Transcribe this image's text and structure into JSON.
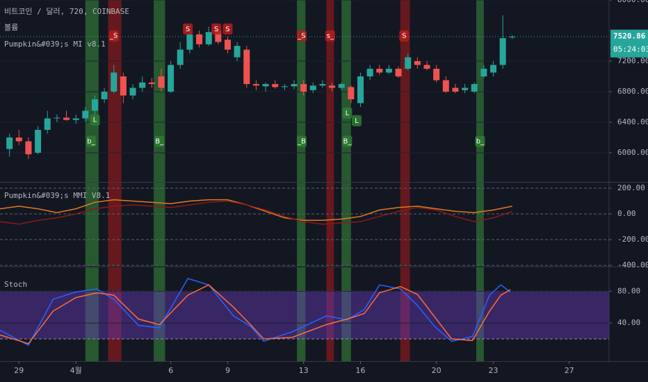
{
  "chart_data": [
    {
      "type": "candlestick",
      "title": "비트코인 / 달러, 720, COINBASE",
      "subtitle": "볼륨",
      "indicator": "Pumpkin&#039;s MI v8.1",
      "xlim": [
        -1,
        31.1
      ],
      "ylim": [
        5618,
        8000
      ],
      "yticks": [
        {
          "value": 6000,
          "label": "6000.00"
        },
        {
          "value": 6400,
          "label": "6400.00"
        },
        {
          "value": 6800,
          "label": "6800.00"
        },
        {
          "value": 7200,
          "label": "7200.00"
        },
        {
          "value": 8000,
          "label": "8000.00"
        }
      ],
      "up_color": "#26a69a",
      "down_color": "#ef5350",
      "x": [
        -0.5,
        0,
        0.5,
        1,
        1.5,
        2,
        2.5,
        3,
        3.5,
        4,
        4.5,
        5,
        5.5,
        6,
        6.5,
        7,
        7.5,
        8,
        8.5,
        9,
        9.5,
        10,
        10.5,
        11,
        11.5,
        12,
        12.5,
        13,
        13.5,
        14,
        14.5,
        15,
        15.5,
        16,
        16.5,
        17,
        17.5,
        18,
        18.5,
        19,
        19.5,
        20,
        20.5,
        21,
        21.5,
        22,
        22.5,
        23,
        23.5,
        24,
        24.5,
        25,
        25.5,
        26
      ],
      "open": [
        6050,
        6200,
        6150,
        6000,
        6300,
        6450,
        6460,
        6430,
        6450,
        6550,
        6700,
        6800,
        7000,
        6750,
        6850,
        6920,
        7000,
        6800,
        7150,
        7350,
        7550,
        7420,
        7600,
        7480,
        7250,
        7350,
        6900,
        6870,
        6900,
        6860,
        6870,
        6900,
        6820,
        6880,
        6880,
        6850,
        6860,
        6650,
        7000,
        7100,
        7050,
        7100,
        7100,
        7200,
        7150,
        7100,
        6950,
        6850,
        6820,
        6800,
        7000,
        7050,
        7150,
        7510
      ],
      "high": [
        6250,
        6300,
        6200,
        6350,
        6550,
        6500,
        6550,
        6500,
        6600,
        6750,
        6850,
        7150,
        7050,
        6900,
        7000,
        6980,
        7100,
        7200,
        7450,
        7600,
        7600,
        7650,
        7650,
        7520,
        7450,
        7400,
        6950,
        6920,
        6950,
        6900,
        6950,
        6950,
        6920,
        6950,
        6920,
        6920,
        6880,
        7050,
        7150,
        7150,
        7150,
        7130,
        7300,
        7250,
        7200,
        7150,
        7000,
        6900,
        6900,
        6920,
        7150,
        7200,
        7800,
        7540
      ],
      "low": [
        5950,
        6100,
        5920,
        5980,
        6250,
        6400,
        6420,
        6380,
        6400,
        6500,
        6650,
        6780,
        6650,
        6700,
        6800,
        6850,
        6800,
        6780,
        7100,
        7300,
        7380,
        7400,
        7420,
        7300,
        7200,
        6850,
        6820,
        6800,
        6840,
        6820,
        6830,
        6750,
        6780,
        6850,
        6800,
        6820,
        6650,
        6600,
        6950,
        7020,
        7030,
        6980,
        7080,
        7100,
        7080,
        6920,
        6780,
        6780,
        6780,
        6780,
        6980,
        7000,
        7100,
        7490
      ],
      "close": [
        6200,
        6150,
        5980,
        6300,
        6450,
        6460,
        6430,
        6450,
        6550,
        6700,
        6800,
        7050,
        6750,
        6850,
        6920,
        6900,
        6850,
        7150,
        7350,
        7550,
        7420,
        7580,
        7450,
        7350,
        7400,
        6900,
        6880,
        6900,
        6860,
        6870,
        6900,
        6800,
        6880,
        6900,
        6850,
        6900,
        6700,
        7000,
        7100,
        7050,
        7100,
        7000,
        7250,
        7150,
        7100,
        6950,
        6800,
        6800,
        6850,
        6900,
        7100,
        7150,
        7500,
        7521
      ],
      "last_price": {
        "value": 7520.86,
        "label": "7520.86"
      },
      "countdown": "05:24:03",
      "highlights": [
        {
          "start": 3.5,
          "end": 4.2,
          "color": "rgba(56,142,60,0.55)"
        },
        {
          "start": 4.7,
          "end": 5.4,
          "color": "rgba(183,28,28,0.5)"
        },
        {
          "start": 7.1,
          "end": 7.7,
          "color": "rgba(56,142,60,0.55)"
        },
        {
          "start": 14.65,
          "end": 15.1,
          "color": "rgba(56,142,60,0.55)"
        },
        {
          "start": 16.2,
          "end": 16.6,
          "color": "rgba(183,28,28,0.5)"
        },
        {
          "start": 17,
          "end": 17.5,
          "color": "rgba(56,142,60,0.55)"
        },
        {
          "start": 20.1,
          "end": 20.6,
          "color": "rgba(183,28,28,0.5)"
        },
        {
          "start": 24.1,
          "end": 24.5,
          "color": "rgba(56,142,60,0.55)"
        }
      ],
      "annotations": [
        {
          "x": 3.8,
          "y": 6150,
          "text": "b_"
        },
        {
          "x": 7.4,
          "y": 6150,
          "text": "B_"
        },
        {
          "x": 14.9,
          "y": 6150,
          "text": "_B"
        },
        {
          "x": 17.3,
          "y": 6150,
          "text": "B_"
        },
        {
          "x": 24.3,
          "y": 6150,
          "text": "b_"
        },
        {
          "x": 5,
          "y": 7530,
          "text": "_S"
        },
        {
          "x": 14.9,
          "y": 7530,
          "text": "_S"
        },
        {
          "x": 16.4,
          "y": 7530,
          "text": "s_"
        },
        {
          "x": 20.3,
          "y": 7530,
          "text": "S"
        },
        {
          "x": 8.9,
          "y": 7620,
          "text": "S"
        },
        {
          "x": 10.4,
          "y": 7620,
          "text": "S"
        },
        {
          "x": 11,
          "y": 7620,
          "text": "S"
        },
        {
          "x": 4,
          "y": 6430,
          "text": "L"
        },
        {
          "x": 17.3,
          "y": 6520,
          "text": "L"
        },
        {
          "x": 17.8,
          "y": 6420,
          "text": "L"
        }
      ]
    },
    {
      "type": "line",
      "title": "Pumpkin&#039;s MMI V8.1",
      "xlim": [
        -1,
        31.1
      ],
      "ylim": [
        -405,
        243
      ],
      "yticks": [
        {
          "value": 200,
          "label": "200.00"
        },
        {
          "value": 0,
          "label": "0.00"
        },
        {
          "value": -200,
          "label": "-200.00"
        },
        {
          "value": -400,
          "label": "-400.00"
        }
      ],
      "x": [
        -1,
        0,
        1,
        2,
        3,
        4,
        5,
        6,
        7,
        8,
        9,
        10,
        11,
        12,
        13,
        14,
        15,
        16,
        17,
        18,
        19,
        20,
        21,
        22,
        23,
        24,
        25,
        26
      ],
      "series": [
        {
          "color": "#e07b1a",
          "values": [
            40,
            60,
            40,
            10,
            40,
            90,
            110,
            100,
            90,
            80,
            100,
            110,
            110,
            70,
            20,
            -30,
            -50,
            -50,
            -40,
            -20,
            30,
            50,
            60,
            40,
            20,
            10,
            30,
            60
          ]
        },
        {
          "color": "#8b1a1a",
          "values": [
            -60,
            -80,
            -50,
            -30,
            0,
            40,
            60,
            70,
            60,
            50,
            70,
            90,
            100,
            70,
            30,
            -20,
            -60,
            -80,
            -70,
            -60,
            -20,
            20,
            50,
            30,
            -20,
            -60,
            -30,
            20
          ]
        }
      ]
    },
    {
      "type": "line",
      "title": "Stoch",
      "xlim": [
        -1,
        31.1
      ],
      "ylim": [
        -8,
        110
      ],
      "yticks": [
        {
          "value": 40,
          "label": "40.00"
        },
        {
          "value": 80,
          "label": "80.00"
        }
      ],
      "band": [
        20,
        80
      ],
      "xticks": [
        {
          "value": 0,
          "label": "29"
        },
        {
          "value": 3,
          "label": "4월"
        },
        {
          "value": 8,
          "label": "6"
        },
        {
          "value": 11,
          "label": "9"
        },
        {
          "value": 15,
          "label": "13"
        },
        {
          "value": 18,
          "label": "16"
        },
        {
          "value": 22,
          "label": "20"
        },
        {
          "value": 25,
          "label": "23"
        },
        {
          "value": 29,
          "label": "27"
        }
      ],
      "x": [
        -1,
        0.5,
        1.8,
        3,
        4.1,
        5,
        6.3,
        7.4,
        8.9,
        10,
        11.3,
        12.2,
        12.9,
        14.4,
        16.2,
        17.3,
        18.2,
        19,
        20.1,
        21,
        21.9,
        22.8,
        23.9,
        24.8,
        25.4,
        25.9
      ],
      "series": [
        {
          "color": "#2962ff",
          "values": [
            31,
            12,
            70,
            79,
            83,
            70,
            37,
            34,
            96,
            88,
            49,
            36,
            17,
            29,
            49,
            44,
            57,
            88,
            83,
            62,
            36,
            17,
            23,
            75,
            88,
            79
          ]
        },
        {
          "color": "#ff6d3a",
          "values": [
            25,
            14,
            55,
            72,
            78,
            75,
            45,
            38,
            75,
            88,
            60,
            38,
            20,
            22,
            38,
            45,
            52,
            78,
            86,
            76,
            48,
            20,
            18,
            55,
            75,
            82
          ]
        }
      ]
    }
  ]
}
